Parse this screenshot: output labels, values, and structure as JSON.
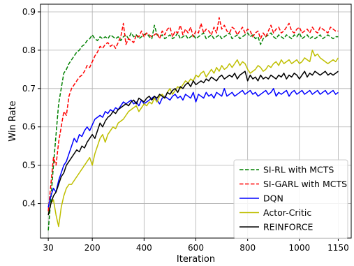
{
  "chart_data": {
    "type": "line",
    "title": "",
    "xlabel": "Iteration",
    "ylabel": "Win Rate",
    "xlim": [
      0,
      1200
    ],
    "ylim": [
      0.31,
      0.92
    ],
    "xticks": [
      30,
      200,
      400,
      600,
      800,
      1000,
      1150
    ],
    "xtick_labels": [
      "30",
      "200",
      "400",
      "600",
      "800",
      "1000",
      "1150"
    ],
    "yticks": [
      0.4,
      0.5,
      0.6,
      0.7,
      0.8,
      0.9
    ],
    "ytick_labels": [
      "0.4",
      "0.5",
      "0.6",
      "0.7",
      "0.8",
      "0.9"
    ],
    "grid": true,
    "legend_position": "bottom-right",
    "x": [
      30,
      40,
      50,
      60,
      70,
      80,
      90,
      100,
      110,
      120,
      130,
      140,
      150,
      160,
      170,
      180,
      190,
      200,
      210,
      220,
      230,
      240,
      250,
      260,
      270,
      280,
      290,
      300,
      310,
      320,
      330,
      340,
      350,
      360,
      370,
      380,
      390,
      400,
      410,
      420,
      430,
      440,
      450,
      460,
      470,
      480,
      490,
      500,
      510,
      520,
      530,
      540,
      550,
      560,
      570,
      580,
      590,
      600,
      610,
      620,
      630,
      640,
      650,
      660,
      670,
      680,
      690,
      700,
      710,
      720,
      730,
      740,
      750,
      760,
      770,
      780,
      790,
      800,
      810,
      820,
      830,
      840,
      850,
      860,
      870,
      880,
      890,
      900,
      910,
      920,
      930,
      940,
      950,
      960,
      970,
      980,
      990,
      1000,
      1010,
      1020,
      1030,
      1040,
      1050,
      1060,
      1070,
      1080,
      1090,
      1100,
      1110,
      1120,
      1130,
      1140,
      1150
    ],
    "series": [
      {
        "name": "SI-RL with MCTS",
        "color": "#008000",
        "dash": "dashed",
        "values": [
          0.33,
          0.41,
          0.5,
          0.58,
          0.66,
          0.7,
          0.74,
          0.75,
          0.765,
          0.775,
          0.785,
          0.795,
          0.8,
          0.81,
          0.815,
          0.825,
          0.83,
          0.84,
          0.83,
          0.825,
          0.835,
          0.83,
          0.835,
          0.83,
          0.84,
          0.835,
          0.83,
          0.835,
          0.825,
          0.835,
          0.84,
          0.83,
          0.845,
          0.835,
          0.84,
          0.83,
          0.835,
          0.84,
          0.845,
          0.835,
          0.83,
          0.865,
          0.84,
          0.835,
          0.84,
          0.83,
          0.835,
          0.84,
          0.83,
          0.835,
          0.845,
          0.83,
          0.835,
          0.84,
          0.83,
          0.835,
          0.84,
          0.83,
          0.835,
          0.84,
          0.845,
          0.83,
          0.835,
          0.84,
          0.83,
          0.835,
          0.84,
          0.83,
          0.835,
          0.84,
          0.845,
          0.83,
          0.835,
          0.84,
          0.83,
          0.835,
          0.84,
          0.845,
          0.835,
          0.84,
          0.83,
          0.835,
          0.815,
          0.83,
          0.835,
          0.84,
          0.845,
          0.835,
          0.83,
          0.84,
          0.835,
          0.83,
          0.84,
          0.835,
          0.83,
          0.84,
          0.835,
          0.845,
          0.83,
          0.835,
          0.84,
          0.83,
          0.835,
          0.83,
          0.835,
          0.84,
          0.83,
          0.835,
          0.84,
          0.835,
          0.83,
          0.835,
          0.835
        ]
      },
      {
        "name": "SI-GARL with MCTS",
        "color": "#ff0000",
        "dash": "dashed",
        "values": [
          0.38,
          0.45,
          0.52,
          0.5,
          0.56,
          0.6,
          0.64,
          0.63,
          0.68,
          0.7,
          0.71,
          0.72,
          0.73,
          0.735,
          0.745,
          0.76,
          0.755,
          0.77,
          0.785,
          0.795,
          0.81,
          0.805,
          0.815,
          0.82,
          0.81,
          0.815,
          0.805,
          0.82,
          0.835,
          0.87,
          0.815,
          0.83,
          0.825,
          0.82,
          0.84,
          0.835,
          0.85,
          0.835,
          0.845,
          0.84,
          0.835,
          0.84,
          0.845,
          0.83,
          0.85,
          0.84,
          0.855,
          0.86,
          0.835,
          0.85,
          0.845,
          0.865,
          0.84,
          0.855,
          0.845,
          0.86,
          0.835,
          0.85,
          0.845,
          0.87,
          0.845,
          0.855,
          0.85,
          0.84,
          0.86,
          0.845,
          0.885,
          0.855,
          0.865,
          0.85,
          0.845,
          0.86,
          0.855,
          0.84,
          0.85,
          0.86,
          0.845,
          0.855,
          0.85,
          0.835,
          0.845,
          0.85,
          0.83,
          0.845,
          0.835,
          0.85,
          0.865,
          0.845,
          0.855,
          0.86,
          0.845,
          0.85,
          0.86,
          0.87,
          0.85,
          0.845,
          0.855,
          0.86,
          0.845,
          0.85,
          0.855,
          0.845,
          0.86,
          0.85,
          0.845,
          0.86,
          0.855,
          0.85,
          0.845,
          0.86,
          0.855,
          0.85,
          0.85
        ]
      },
      {
        "name": "DQN",
        "color": "#0000ff",
        "dash": "solid",
        "values": [
          0.39,
          0.42,
          0.44,
          0.43,
          0.46,
          0.48,
          0.5,
          0.51,
          0.53,
          0.55,
          0.57,
          0.56,
          0.58,
          0.575,
          0.59,
          0.6,
          0.59,
          0.605,
          0.62,
          0.625,
          0.63,
          0.625,
          0.64,
          0.635,
          0.645,
          0.64,
          0.65,
          0.645,
          0.655,
          0.665,
          0.66,
          0.665,
          0.67,
          0.66,
          0.665,
          0.655,
          0.67,
          0.66,
          0.665,
          0.67,
          0.675,
          0.68,
          0.67,
          0.66,
          0.675,
          0.68,
          0.675,
          0.67,
          0.68,
          0.685,
          0.675,
          0.68,
          0.67,
          0.685,
          0.68,
          0.675,
          0.69,
          0.665,
          0.685,
          0.68,
          0.675,
          0.69,
          0.68,
          0.685,
          0.675,
          0.69,
          0.685,
          0.68,
          0.7,
          0.68,
          0.685,
          0.69,
          0.68,
          0.685,
          0.69,
          0.695,
          0.685,
          0.69,
          0.695,
          0.685,
          0.69,
          0.68,
          0.685,
          0.69,
          0.695,
          0.685,
          0.69,
          0.7,
          0.68,
          0.69,
          0.685,
          0.69,
          0.695,
          0.68,
          0.69,
          0.695,
          0.685,
          0.69,
          0.695,
          0.685,
          0.69,
          0.695,
          0.685,
          0.69,
          0.695,
          0.685,
          0.69,
          0.695,
          0.685,
          0.69,
          0.695,
          0.685,
          0.69
        ]
      },
      {
        "name": "Actor-Critic",
        "color": "#bfbf00",
        "dash": "solid",
        "values": [
          0.37,
          0.4,
          0.41,
          0.37,
          0.34,
          0.39,
          0.42,
          0.44,
          0.45,
          0.45,
          0.46,
          0.47,
          0.48,
          0.49,
          0.5,
          0.51,
          0.52,
          0.5,
          0.53,
          0.55,
          0.57,
          0.58,
          0.56,
          0.58,
          0.59,
          0.6,
          0.595,
          0.61,
          0.615,
          0.62,
          0.63,
          0.64,
          0.645,
          0.65,
          0.655,
          0.64,
          0.65,
          0.66,
          0.655,
          0.665,
          0.66,
          0.675,
          0.665,
          0.68,
          0.685,
          0.675,
          0.69,
          0.7,
          0.685,
          0.695,
          0.705,
          0.7,
          0.71,
          0.72,
          0.715,
          0.725,
          0.72,
          0.735,
          0.73,
          0.74,
          0.745,
          0.73,
          0.74,
          0.75,
          0.74,
          0.755,
          0.745,
          0.76,
          0.75,
          0.755,
          0.765,
          0.755,
          0.765,
          0.775,
          0.76,
          0.77,
          0.765,
          0.75,
          0.74,
          0.745,
          0.75,
          0.76,
          0.755,
          0.745,
          0.75,
          0.76,
          0.755,
          0.765,
          0.77,
          0.76,
          0.775,
          0.765,
          0.77,
          0.775,
          0.765,
          0.77,
          0.775,
          0.765,
          0.77,
          0.78,
          0.775,
          0.77,
          0.8,
          0.785,
          0.79,
          0.78,
          0.775,
          0.77,
          0.765,
          0.77,
          0.775,
          0.77,
          0.78
        ]
      },
      {
        "name": "REINFORCE",
        "color": "#000000",
        "dash": "solid",
        "values": [
          0.37,
          0.4,
          0.42,
          0.43,
          0.45,
          0.47,
          0.48,
          0.5,
          0.51,
          0.52,
          0.53,
          0.54,
          0.535,
          0.55,
          0.545,
          0.56,
          0.57,
          0.58,
          0.57,
          0.59,
          0.61,
          0.6,
          0.615,
          0.625,
          0.63,
          0.64,
          0.635,
          0.645,
          0.65,
          0.655,
          0.66,
          0.655,
          0.665,
          0.67,
          0.66,
          0.675,
          0.67,
          0.665,
          0.675,
          0.68,
          0.67,
          0.68,
          0.675,
          0.685,
          0.68,
          0.675,
          0.69,
          0.685,
          0.695,
          0.7,
          0.69,
          0.705,
          0.7,
          0.71,
          0.715,
          0.705,
          0.72,
          0.71,
          0.715,
          0.72,
          0.715,
          0.725,
          0.72,
          0.73,
          0.725,
          0.72,
          0.73,
          0.735,
          0.725,
          0.73,
          0.735,
          0.73,
          0.74,
          0.725,
          0.735,
          0.74,
          0.745,
          0.72,
          0.735,
          0.725,
          0.73,
          0.72,
          0.735,
          0.725,
          0.73,
          0.725,
          0.735,
          0.73,
          0.725,
          0.735,
          0.73,
          0.74,
          0.725,
          0.735,
          0.73,
          0.74,
          0.735,
          0.725,
          0.735,
          0.745,
          0.73,
          0.74,
          0.735,
          0.745,
          0.74,
          0.735,
          0.74,
          0.745,
          0.735,
          0.74,
          0.735,
          0.74,
          0.745
        ]
      }
    ]
  }
}
